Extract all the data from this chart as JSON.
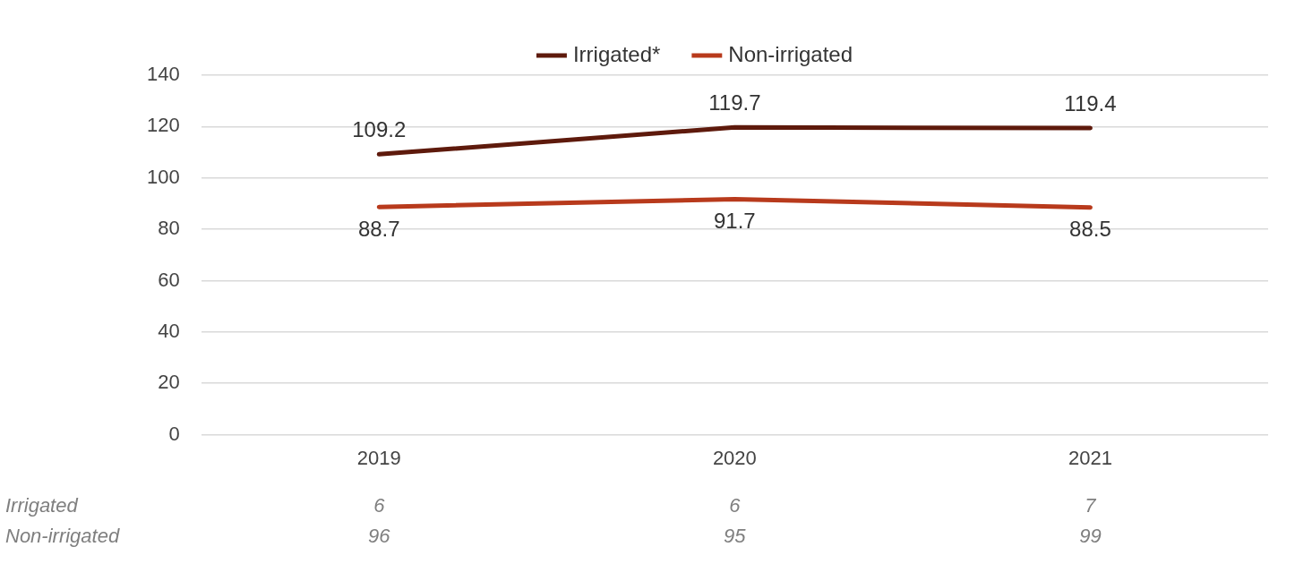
{
  "chart_data": {
    "type": "line",
    "categories": [
      "2019",
      "2020",
      "2021"
    ],
    "series": [
      {
        "name": "Irrigated*",
        "color": "#5e1a0c",
        "values": [
          109.2,
          119.7,
          119.4
        ]
      },
      {
        "name": "Non-irrigated",
        "color": "#b83a1c",
        "values": [
          88.7,
          91.7,
          88.5
        ]
      }
    ],
    "ylim": [
      0,
      140
    ],
    "yticks": [
      0,
      20,
      40,
      60,
      80,
      100,
      120,
      140
    ],
    "grid": "y",
    "legend": "top",
    "marker": "none",
    "line_style": "solid",
    "data_labels": true,
    "annotations": [
      "Irrigated",
      "6",
      "6",
      "7",
      "Non-irrigated",
      "96",
      "95",
      "99"
    ]
  }
}
